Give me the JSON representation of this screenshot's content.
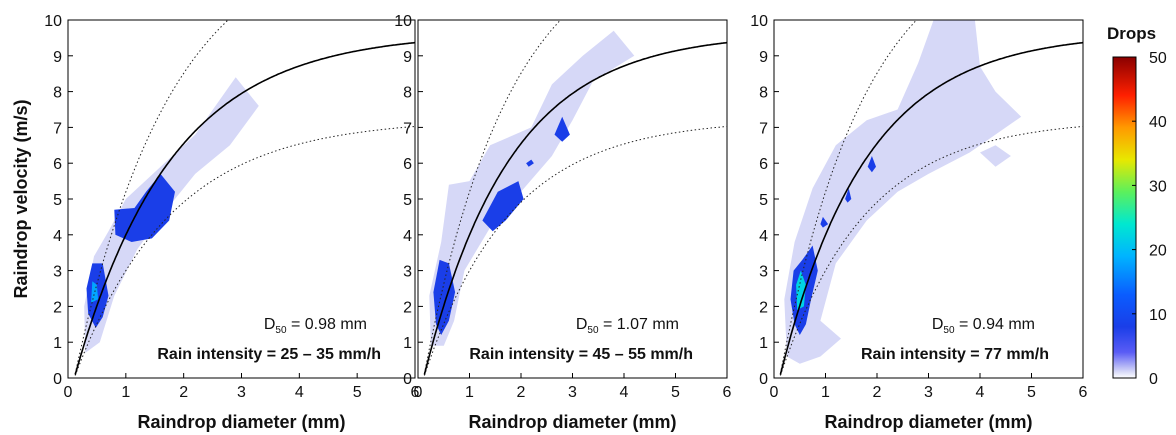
{
  "chart_data": [
    {
      "type": "contour",
      "xlabel": "Raindrop diameter (mm)",
      "ylabel": "Raindrop velocity (m/s)",
      "xlim": [
        0,
        6
      ],
      "ylim": [
        0,
        10
      ],
      "xticks": [
        "0",
        "1",
        "2",
        "3",
        "4",
        "5",
        "6"
      ],
      "yticks": [
        "0",
        "1",
        "2",
        "3",
        "4",
        "5",
        "6",
        "7",
        "8",
        "9",
        "10"
      ],
      "d50_label": "D",
      "d50_sub": "50",
      "d50_value": " = 0.98 mm",
      "intensity": "Rain intensity = 25 – 35 mm/h",
      "density_regions": [
        {
          "level": 1,
          "points": [
            [
              0.3,
              0.7
            ],
            [
              0.28,
              2.0
            ],
            [
              0.45,
              3.4
            ],
            [
              0.7,
              4.1
            ],
            [
              1.0,
              5.0
            ],
            [
              1.4,
              5.6
            ],
            [
              2.2,
              6.8
            ],
            [
              2.9,
              8.4
            ],
            [
              3.3,
              7.6
            ],
            [
              2.8,
              6.5
            ],
            [
              2.2,
              5.7
            ],
            [
              1.7,
              4.7
            ],
            [
              1.2,
              3.6
            ],
            [
              0.8,
              2.3
            ],
            [
              0.55,
              1.0
            ]
          ]
        },
        {
          "level": 8,
          "points": [
            [
              0.35,
              1.8
            ],
            [
              0.32,
              2.5
            ],
            [
              0.42,
              3.2
            ],
            [
              0.6,
              3.2
            ],
            [
              0.7,
              2.3
            ],
            [
              0.6,
              1.7
            ],
            [
              0.48,
              1.4
            ]
          ]
        },
        {
          "level": 8,
          "points": [
            [
              0.82,
              4.0
            ],
            [
              0.8,
              4.7
            ],
            [
              1.15,
              4.75
            ],
            [
              1.35,
              5.2
            ],
            [
              1.6,
              5.7
            ],
            [
              1.85,
              5.2
            ],
            [
              1.75,
              4.4
            ],
            [
              1.45,
              3.9
            ],
            [
              1.1,
              3.8
            ]
          ]
        },
        {
          "level": 18,
          "points": [
            [
              0.4,
              2.1
            ],
            [
              0.42,
              2.7
            ],
            [
              0.5,
              2.6
            ],
            [
              0.52,
              2.2
            ]
          ]
        }
      ]
    },
    {
      "type": "contour",
      "xlabel": "Raindrop diameter (mm)",
      "ylabel": "",
      "xlim": [
        0,
        6
      ],
      "ylim": [
        0,
        10
      ],
      "xticks": [
        "0",
        "1",
        "2",
        "3",
        "4",
        "5",
        "6"
      ],
      "yticks": [
        "0",
        "1",
        "2",
        "3",
        "4",
        "5",
        "6",
        "7",
        "8",
        "9",
        "10"
      ],
      "d50_label": "D",
      "d50_sub": "50",
      "d50_value": " = 1.07 mm",
      "intensity": "Rain intensity = 45 – 55 mm/h",
      "density_regions": [
        {
          "level": 1,
          "points": [
            [
              0.25,
              0.9
            ],
            [
              0.22,
              2.3
            ],
            [
              0.45,
              3.8
            ],
            [
              0.6,
              5.4
            ],
            [
              1.0,
              5.5
            ],
            [
              1.4,
              6.5
            ],
            [
              2.2,
              7.0
            ],
            [
              2.6,
              8.2
            ],
            [
              3.2,
              9.0
            ],
            [
              3.8,
              9.7
            ],
            [
              4.2,
              9.0
            ],
            [
              3.4,
              8.3
            ],
            [
              3.0,
              7.2
            ],
            [
              2.6,
              6.2
            ],
            [
              2.0,
              5.2
            ],
            [
              1.4,
              4.2
            ],
            [
              0.9,
              3.0
            ],
            [
              0.7,
              1.6
            ],
            [
              0.5,
              0.9
            ]
          ]
        },
        {
          "level": 8,
          "points": [
            [
              0.35,
              1.5
            ],
            [
              0.3,
              2.4
            ],
            [
              0.42,
              3.3
            ],
            [
              0.6,
              3.2
            ],
            [
              0.72,
              2.4
            ],
            [
              0.6,
              1.6
            ],
            [
              0.45,
              1.2
            ]
          ]
        },
        {
          "level": 8,
          "points": [
            [
              1.25,
              4.4
            ],
            [
              1.55,
              5.2
            ],
            [
              1.95,
              5.5
            ],
            [
              2.05,
              5.0
            ],
            [
              1.7,
              4.4
            ],
            [
              1.45,
              4.1
            ]
          ]
        },
        {
          "level": 8,
          "points": [
            [
              2.65,
              6.8
            ],
            [
              2.8,
              7.3
            ],
            [
              2.95,
              6.8
            ],
            [
              2.8,
              6.6
            ]
          ]
        },
        {
          "level": 8,
          "points": [
            [
              2.1,
              6.0
            ],
            [
              2.2,
              6.1
            ],
            [
              2.25,
              6.0
            ],
            [
              2.15,
              5.9
            ]
          ]
        }
      ]
    },
    {
      "type": "contour",
      "xlabel": "Raindrop diameter (mm)",
      "ylabel": "",
      "xlim": [
        0,
        6
      ],
      "ylim": [
        0,
        10
      ],
      "xticks": [
        "0",
        "1",
        "2",
        "3",
        "4",
        "5",
        "6"
      ],
      "yticks": [
        "0",
        "1",
        "2",
        "3",
        "4",
        "5",
        "6",
        "7",
        "8",
        "9",
        "10"
      ],
      "d50_label": "D",
      "d50_sub": "50",
      "d50_value": " = 0.94 mm",
      "intensity": "Rain intensity = 77 mm/h",
      "density_regions": [
        {
          "level": 1,
          "points": [
            [
              0.25,
              0.6
            ],
            [
              0.2,
              2.2
            ],
            [
              0.4,
              3.8
            ],
            [
              0.75,
              5.3
            ],
            [
              1.2,
              6.5
            ],
            [
              1.8,
              7.2
            ],
            [
              2.4,
              7.5
            ],
            [
              2.8,
              8.8
            ],
            [
              3.1,
              10.0
            ],
            [
              3.9,
              10.0
            ],
            [
              4.0,
              8.7
            ],
            [
              4.3,
              8.0
            ],
            [
              4.8,
              7.3
            ],
            [
              3.8,
              6.3
            ],
            [
              3.0,
              5.7
            ],
            [
              2.4,
              5.2
            ],
            [
              1.8,
              4.4
            ],
            [
              1.2,
              3.2
            ],
            [
              0.9,
              1.6
            ],
            [
              1.3,
              1.1
            ],
            [
              0.9,
              0.6
            ],
            [
              0.5,
              0.4
            ]
          ]
        },
        {
          "level": 1,
          "points": [
            [
              4.0,
              6.3
            ],
            [
              4.3,
              6.5
            ],
            [
              4.6,
              6.2
            ],
            [
              4.3,
              5.9
            ]
          ]
        },
        {
          "level": 8,
          "points": [
            [
              0.4,
              1.5
            ],
            [
              0.32,
              2.2
            ],
            [
              0.38,
              3.0
            ],
            [
              0.55,
              3.3
            ],
            [
              0.75,
              3.7
            ],
            [
              0.85,
              3.0
            ],
            [
              0.72,
              2.2
            ],
            [
              0.62,
              1.5
            ],
            [
              0.5,
              1.2
            ]
          ]
        },
        {
          "level": 8,
          "points": [
            [
              0.9,
              4.3
            ],
            [
              0.95,
              4.5
            ],
            [
              1.05,
              4.3
            ],
            [
              0.95,
              4.2
            ]
          ]
        },
        {
          "level": 8,
          "points": [
            [
              1.38,
              5.0
            ],
            [
              1.45,
              5.3
            ],
            [
              1.5,
              5.0
            ],
            [
              1.43,
              4.9
            ]
          ]
        },
        {
          "level": 8,
          "points": [
            [
              1.82,
              5.9
            ],
            [
              1.9,
              6.2
            ],
            [
              1.98,
              5.9
            ],
            [
              1.9,
              5.75
            ]
          ]
        },
        {
          "level": 22,
          "points": [
            [
              0.45,
              1.9
            ],
            [
              0.43,
              2.6
            ],
            [
              0.52,
              3.0
            ],
            [
              0.62,
              2.6
            ],
            [
              0.58,
              2.0
            ]
          ]
        }
      ]
    }
  ],
  "colorbar": {
    "title": "Drops",
    "ticks": [
      "0",
      "10",
      "20",
      "30",
      "40",
      "50"
    ],
    "range": [
      0,
      50
    ]
  }
}
